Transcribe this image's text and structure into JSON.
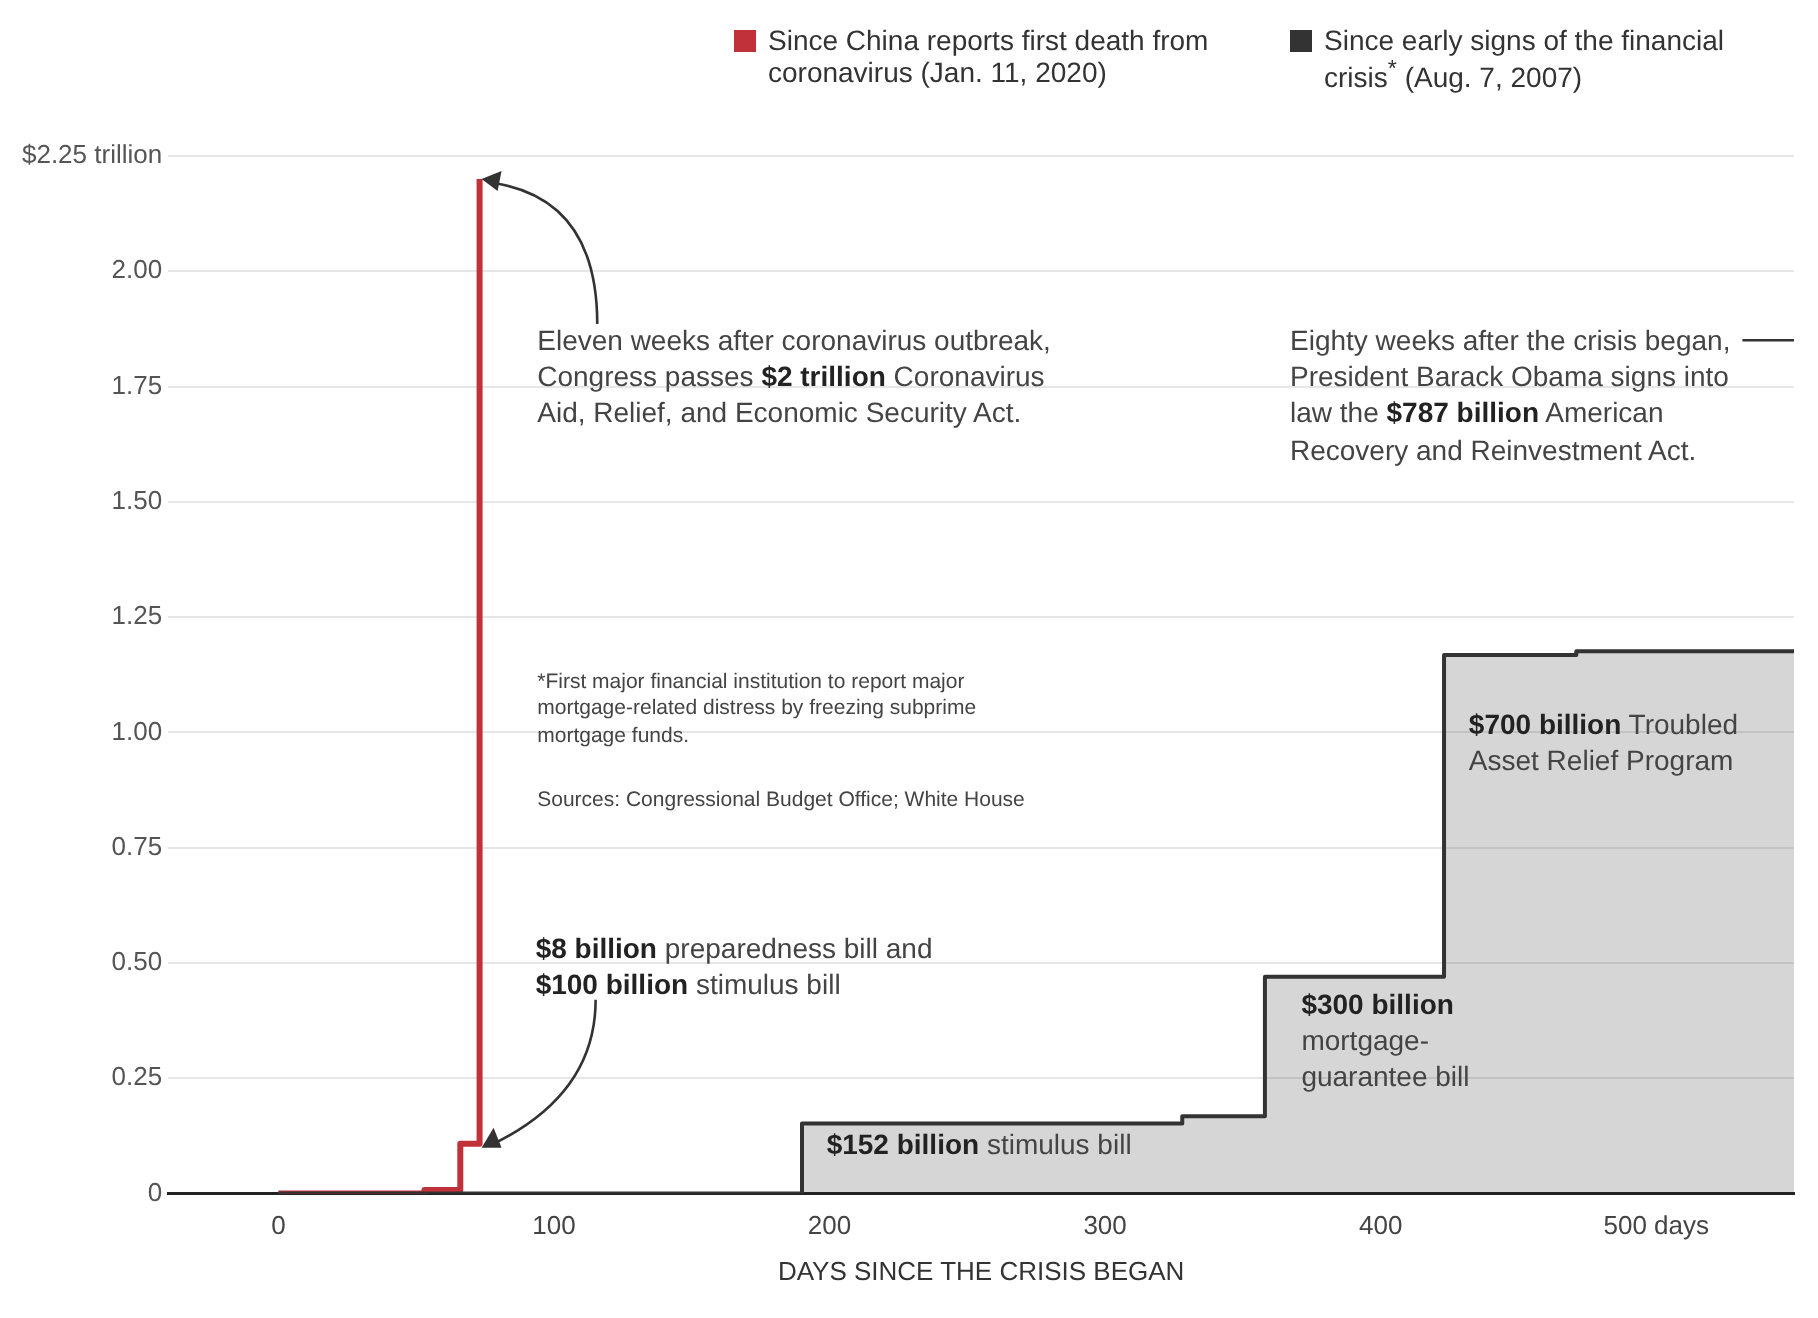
{
  "chart_data": {
    "type": "step",
    "xlabel": "DAYS SINCE THE CRISIS BEGAN",
    "xlim": [
      -40,
      550
    ],
    "xticks": [
      0,
      100,
      200,
      300,
      400,
      {
        "value": 500,
        "label": "500 days"
      }
    ],
    "ylim": [
      0,
      2.25
    ],
    "yticks": [
      0,
      {
        "value": 0.25,
        "label": "0.25"
      },
      {
        "value": 0.5,
        "label": "0.50"
      },
      {
        "value": 0.75,
        "label": "0.75"
      },
      {
        "value": 1,
        "label": "1.00"
      },
      {
        "value": 1.25,
        "label": "1.25"
      },
      {
        "value": 1.5,
        "label": "1.50"
      },
      {
        "value": 1.75,
        "label": "1.75"
      },
      {
        "value": 2,
        "label": "2.00"
      },
      {
        "value": 2.25,
        "label": "$2.25 trillion"
      }
    ],
    "grid": "y",
    "legend": "top right",
    "series": [
      {
        "name": "Since early signs of the financial crisis$^{*}$ (Aug. 7, 2007)",
        "type": "area",
        "color": "#333333",
        "x": [
          0,
          190,
          328,
          358,
          423,
          471,
          550
        ],
        "values": [
          0,
          0.152,
          0.168,
          0.47,
          1.168,
          1.176,
          1.176
        ]
      },
      {
        "name": "Since China reports first death from coronavirus (Jan. 11, 2020)",
        "color": "#c0313a",
        "x": [
          0,
          53,
          66,
          73
        ],
        "values": [
          0,
          0.008,
          0.108,
          2.2
        ]
      }
    ],
    "annotations": [
      "Eleven weeks after coronavirus outbreak, Congress passes $2 trillion Coronavirus Aid, Relief, and Economic Security Act.",
      "Eighty weeks after the crisis began, President Barack Obama signs into law the $787 billion American Recovery and Reinvestment Act.",
      {
        "text": "$8 billion preparedness bill and $100 billion stimulus bill",
        "x": 73,
        "y": 0.108
      },
      "$152 billion stimulus bill",
      "$300 billion mortgage-guarantee bill",
      "$700 billion Troubled Asset Relief Program",
      "*First major financial institution to report major mortgage-related distress by freezing subprime mortgage funds.",
      "Sources: Congressional Budget Office; White House"
    ]
  }
}
